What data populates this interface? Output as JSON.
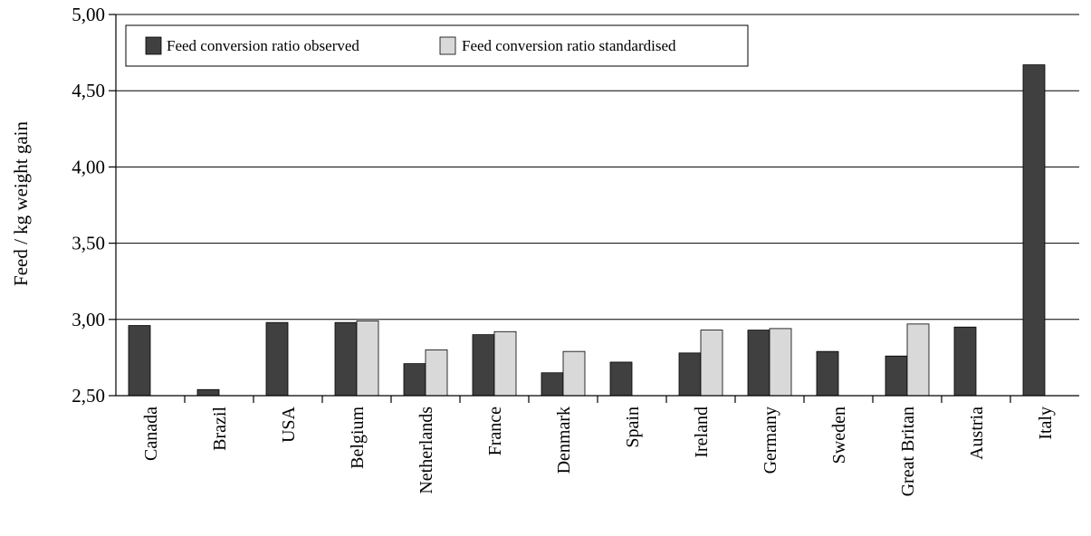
{
  "chart_data": {
    "type": "bar",
    "ylabel": "Feed / kg weight gain",
    "xlabel": "",
    "ylim": [
      2.5,
      5.0
    ],
    "yticks": [
      2.5,
      3.0,
      3.5,
      4.0,
      4.5,
      5.0
    ],
    "ytick_labels": [
      "2,50",
      "3,00",
      "3,50",
      "4,00",
      "4,50",
      "5,00"
    ],
    "grid": true,
    "legend_position": "top-left",
    "categories": [
      "Canada",
      "Brazil",
      "USA",
      "Belgium",
      "Netherlands",
      "France",
      "Denmark",
      "Spain",
      "Ireland",
      "Germany",
      "Sweden",
      "Great Britan",
      "Austria",
      "Italy"
    ],
    "series": [
      {
        "name": "Feed conversion ratio observed",
        "color": "#404040",
        "values": [
          2.96,
          2.54,
          2.98,
          2.98,
          2.71,
          2.9,
          2.65,
          2.72,
          2.78,
          2.93,
          2.79,
          2.76,
          2.95,
          4.67
        ]
      },
      {
        "name": "Feed conversion ratio standardised",
        "color": "#d9d9d9",
        "values": [
          null,
          null,
          null,
          2.99,
          2.8,
          2.92,
          2.79,
          null,
          2.93,
          2.94,
          null,
          2.97,
          null,
          null
        ]
      }
    ]
  }
}
